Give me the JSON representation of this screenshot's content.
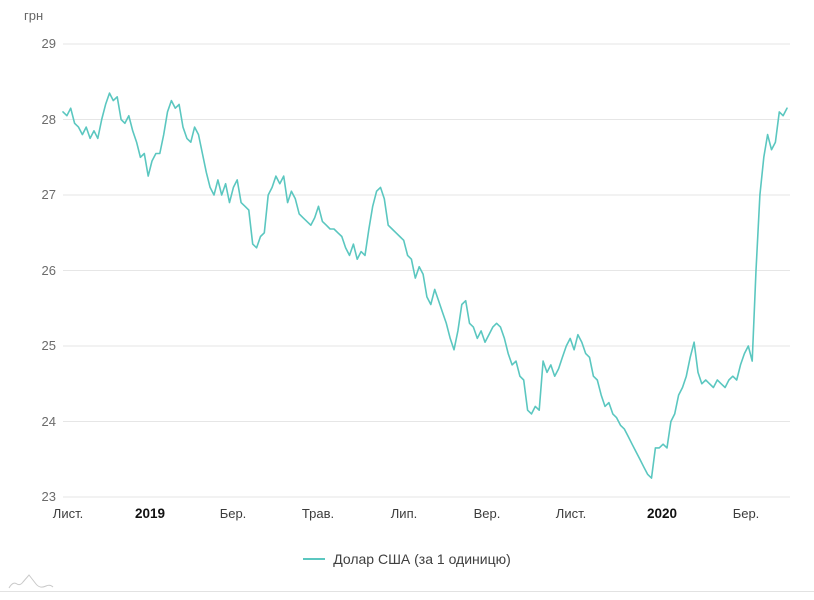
{
  "page": {
    "background": "#ffffff"
  },
  "legend": {
    "label": "Долар США (за 1 одиницю)"
  },
  "colors": {
    "line": "#5bc7c0",
    "grid": "#e6e6e6",
    "y_axis_text": "#6b6b6b",
    "month_text": "#3c3c3c",
    "year_text": "#111111",
    "legend_text": "#3f3f3f",
    "logo": "#c9c9c9"
  },
  "chart_data": {
    "type": "line",
    "title": "",
    "xlabel": "",
    "ylabel": "грн",
    "series_name": "Долар США (за 1 одиницю)",
    "ylim": [
      23,
      29
    ],
    "grid": "horizontal-only",
    "legend_position": "bottom-center",
    "y_ticks": [
      29,
      28,
      27,
      26,
      25,
      24,
      23
    ],
    "x_ticks": [
      {
        "label": "Лист.",
        "pos": 0.007,
        "bold": false
      },
      {
        "label": "2019",
        "pos": 0.12,
        "bold": true
      },
      {
        "label": "Бер.",
        "pos": 0.235,
        "bold": false
      },
      {
        "label": "Трав.",
        "pos": 0.352,
        "bold": false
      },
      {
        "label": "Лип.",
        "pos": 0.471,
        "bold": false
      },
      {
        "label": "Вер.",
        "pos": 0.586,
        "bold": false
      },
      {
        "label": "Лист.",
        "pos": 0.702,
        "bold": false
      },
      {
        "label": "2020",
        "pos": 0.827,
        "bold": true
      },
      {
        "label": "Бер.",
        "pos": 0.943,
        "bold": false
      }
    ],
    "x_range_note": "daily values, Nov 2018 – mid Apr 2020",
    "values": [
      28.1,
      28.05,
      28.15,
      27.95,
      27.9,
      27.8,
      27.9,
      27.75,
      27.85,
      27.75,
      28.0,
      28.2,
      28.35,
      28.25,
      28.3,
      28.0,
      27.95,
      28.05,
      27.85,
      27.7,
      27.5,
      27.55,
      27.25,
      27.45,
      27.55,
      27.55,
      27.8,
      28.1,
      28.25,
      28.15,
      28.2,
      27.9,
      27.75,
      27.7,
      27.9,
      27.8,
      27.55,
      27.3,
      27.1,
      27.0,
      27.2,
      27.0,
      27.15,
      26.9,
      27.1,
      27.2,
      26.9,
      26.85,
      26.8,
      26.35,
      26.3,
      26.45,
      26.5,
      27.0,
      27.1,
      27.25,
      27.15,
      27.25,
      26.9,
      27.05,
      26.95,
      26.75,
      26.7,
      26.65,
      26.6,
      26.7,
      26.85,
      26.65,
      26.6,
      26.55,
      26.55,
      26.5,
      26.45,
      26.3,
      26.2,
      26.35,
      26.15,
      26.25,
      26.2,
      26.55,
      26.85,
      27.05,
      27.1,
      26.95,
      26.6,
      26.55,
      26.5,
      26.45,
      26.4,
      26.2,
      26.15,
      25.9,
      26.05,
      25.95,
      25.65,
      25.55,
      25.75,
      25.6,
      25.45,
      25.3,
      25.1,
      24.95,
      25.2,
      25.55,
      25.6,
      25.3,
      25.25,
      25.1,
      25.2,
      25.05,
      25.15,
      25.25,
      25.3,
      25.25,
      25.1,
      24.9,
      24.75,
      24.8,
      24.6,
      24.55,
      24.15,
      24.1,
      24.2,
      24.15,
      24.8,
      24.65,
      24.75,
      24.6,
      24.7,
      24.85,
      25.0,
      25.1,
      24.95,
      25.15,
      25.05,
      24.9,
      24.85,
      24.6,
      24.55,
      24.35,
      24.2,
      24.25,
      24.1,
      24.05,
      23.95,
      23.9,
      23.8,
      23.7,
      23.6,
      23.5,
      23.4,
      23.3,
      23.25,
      23.65,
      23.65,
      23.7,
      23.65,
      24.0,
      24.1,
      24.35,
      24.45,
      24.6,
      24.85,
      25.05,
      24.65,
      24.5,
      24.55,
      24.5,
      24.45,
      24.55,
      24.5,
      24.45,
      24.55,
      24.6,
      24.55,
      24.75,
      24.9,
      25.0,
      24.8,
      26.0,
      27.0,
      27.5,
      27.8,
      27.6,
      27.7,
      28.1,
      28.05,
      28.15
    ]
  }
}
